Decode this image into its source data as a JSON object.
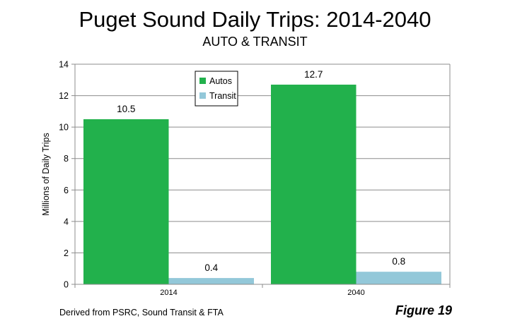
{
  "chart_data": {
    "type": "bar",
    "title": "Puget Sound Daily Trips: 2014-2040",
    "subtitle": "AUTO & TRANSIT",
    "categories": [
      "2014",
      "2040"
    ],
    "series": [
      {
        "name": "Autos",
        "values": [
          10.5,
          12.7
        ],
        "color": "#22b14c"
      },
      {
        "name": "Transit",
        "values": [
          0.4,
          0.8
        ],
        "color": "#93c8d9"
      }
    ],
    "ylabel": "Millions of Daily Trips",
    "xlabel": "",
    "ylim": [
      0,
      14
    ],
    "yticks": [
      0,
      2,
      4,
      6,
      8,
      10,
      12,
      14
    ],
    "grid": true,
    "legend": "top-center"
  },
  "footer": {
    "source": "Derived from PSRC, Sound Transit & FTA",
    "figure": "Figure 19"
  }
}
